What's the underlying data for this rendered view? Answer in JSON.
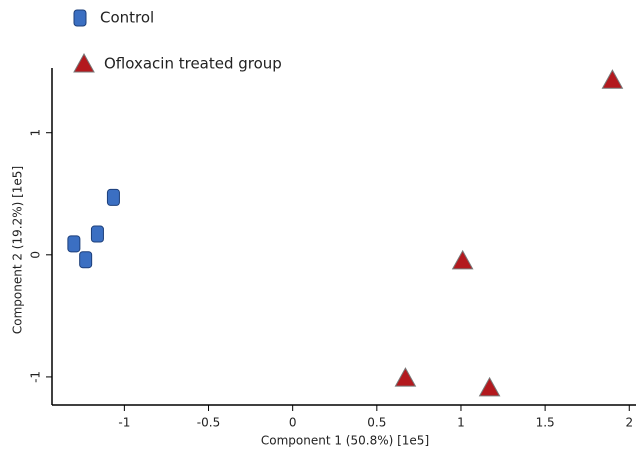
{
  "chart_data": {
    "type": "scatter",
    "x_label": "Component 1 (50.8%) [1e5]",
    "y_label": "Component 2 (19.2%) [1e5]",
    "xlim": [
      -1.43,
      2.04
    ],
    "ylim": [
      -1.23,
      1.53
    ],
    "xticks": [
      -1,
      -0.5,
      0,
      0.5,
      1,
      1.5,
      2
    ],
    "yticks": [
      -1,
      0,
      1
    ],
    "grid": false,
    "series": [
      {
        "name": "Control",
        "color": "#3b6fc2",
        "marker": "square",
        "x": [
          -1.065,
          -1.16,
          -1.3,
          -1.23
        ],
        "values": [
          0.47,
          0.17,
          0.09,
          -0.04
        ]
      },
      {
        "name": "Ofloxacin treated group",
        "color": "#b3191e",
        "marker": "triangle",
        "x": [
          1.9,
          1.01,
          0.67,
          1.17
        ],
        "values": [
          1.43,
          -0.05,
          -1.01,
          -1.09
        ]
      }
    ]
  }
}
